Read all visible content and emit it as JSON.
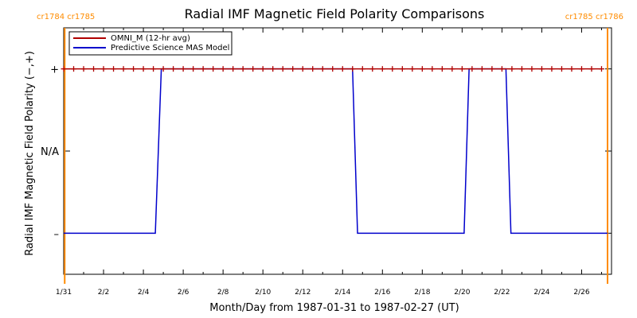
{
  "chart_data": {
    "type": "line",
    "title": "Radial IMF Magnetic Field Polarity Comparisons",
    "xlabel": "Month/Day from 1987-01-31 to 1987-02-27 (UT)",
    "ylabel": "Radial IMF Magnetic Field Polarity (−,+)",
    "x_start": "1987-01-31",
    "x_end": "1987-02-27",
    "xlim": [
      0,
      27.5
    ],
    "ylim": [
      -1.5,
      1.5
    ],
    "x_ticks": [
      {
        "value": 0,
        "label": "1/31"
      },
      {
        "value": 2,
        "label": "2/2"
      },
      {
        "value": 4,
        "label": "2/4"
      },
      {
        "value": 6,
        "label": "2/6"
      },
      {
        "value": 8,
        "label": "2/8"
      },
      {
        "value": 10,
        "label": "2/10"
      },
      {
        "value": 12,
        "label": "2/12"
      },
      {
        "value": 14,
        "label": "2/14"
      },
      {
        "value": 16,
        "label": "2/16"
      },
      {
        "value": 18,
        "label": "2/18"
      },
      {
        "value": 20,
        "label": "2/20"
      },
      {
        "value": 22,
        "label": "2/22"
      },
      {
        "value": 24,
        "label": "2/24"
      },
      {
        "value": 26,
        "label": "2/26"
      }
    ],
    "y_ticks": [
      {
        "value": 1,
        "label": "+"
      },
      {
        "value": 0,
        "label": "N/A"
      },
      {
        "value": -1,
        "label": "–"
      }
    ],
    "legend_position": "top-left",
    "series": [
      {
        "name": "OMNI_M (12-hr avg)",
        "color": "#b00000",
        "marker": "plus",
        "x": [
          0,
          0.5,
          1,
          1.5,
          2,
          2.5,
          3,
          3.5,
          4,
          4.5,
          5,
          5.5,
          6,
          6.5,
          7,
          7.5,
          8,
          8.5,
          9,
          9.5,
          10,
          10.5,
          11,
          11.5,
          12,
          12.5,
          13,
          13.5,
          14,
          14.5,
          15,
          15.5,
          16,
          16.5,
          17,
          17.5,
          18,
          18.5,
          19,
          19.5,
          20,
          20.5,
          21,
          21.5,
          22,
          22.5,
          23,
          23.5,
          24,
          24.5,
          25,
          25.5,
          26,
          26.5,
          27
        ],
        "y": [
          1,
          1,
          1,
          1,
          1,
          1,
          1,
          1,
          1,
          1,
          1,
          1,
          1,
          1,
          1,
          1,
          1,
          1,
          1,
          1,
          1,
          1,
          1,
          1,
          1,
          1,
          1,
          1,
          1,
          1,
          1,
          1,
          1,
          1,
          1,
          1,
          1,
          1,
          1,
          1,
          1,
          1,
          1,
          1,
          1,
          1,
          1,
          1,
          1,
          1,
          1,
          1,
          1,
          1,
          1
        ]
      },
      {
        "name": "Predictive Science MAS Model",
        "color": "#0000cc",
        "marker": "none",
        "x": [
          0,
          4.6,
          4.9,
          14.5,
          14.75,
          20.1,
          20.35,
          22.2,
          22.45,
          27.3
        ],
        "y": [
          -1,
          -1,
          1,
          1,
          -1,
          -1,
          1,
          1,
          -1,
          -1
        ]
      }
    ],
    "carrington_markers": [
      {
        "x": 0.05,
        "label": "cr1784 cr1785",
        "color": "#ff8c00",
        "label_side": "left"
      },
      {
        "x": 27.3,
        "label": "cr1785 cr1786",
        "color": "#ff8c00",
        "label_side": "right"
      }
    ]
  }
}
